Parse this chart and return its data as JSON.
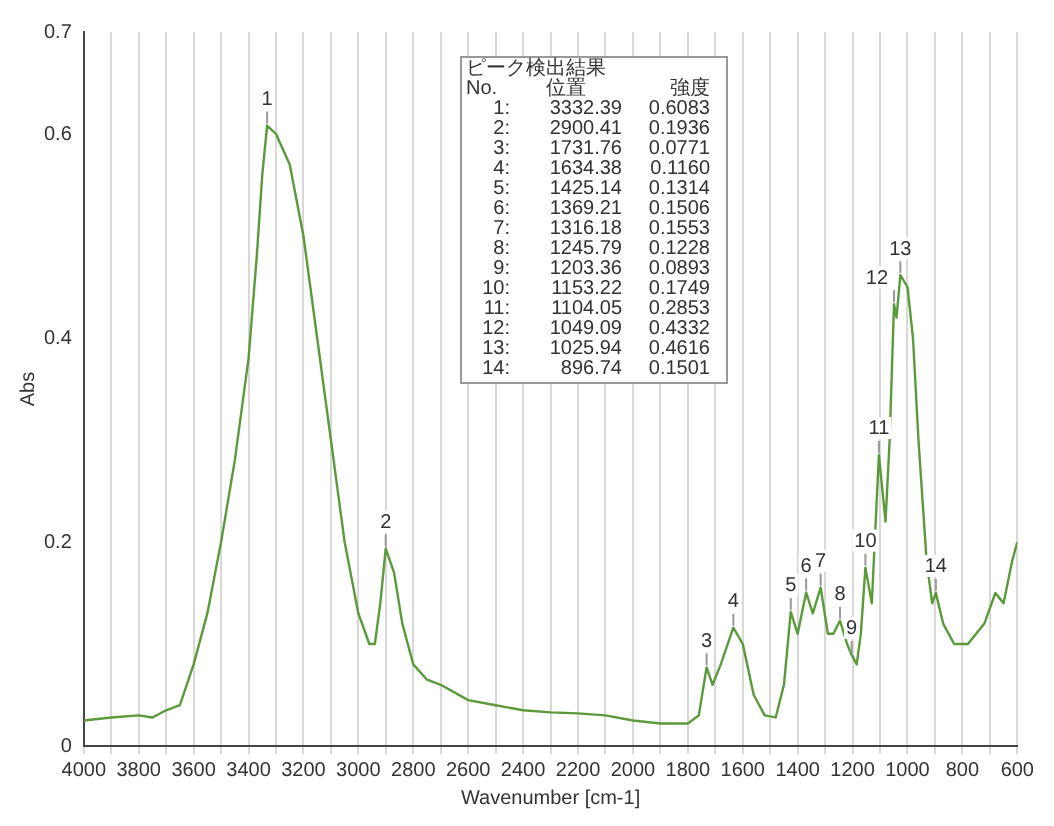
{
  "chart_data": {
    "type": "line",
    "xlabel": "Wavenumber [cm-1]",
    "ylabel": "Abs",
    "xlim": [
      4000,
      600
    ],
    "ylim": [
      0,
      0.7
    ],
    "xticks": [
      4000,
      {
        "value": 3900,
        "label": null
      },
      3800,
      {
        "value": 3700,
        "label": null
      },
      3600,
      {
        "value": 3500,
        "label": null
      },
      3400,
      {
        "value": 3300,
        "label": null
      },
      3200,
      {
        "value": 3100,
        "label": null
      },
      3000,
      {
        "value": 2900,
        "label": null
      },
      2800,
      {
        "value": 2700,
        "label": null
      },
      2600,
      {
        "value": 2500,
        "label": null
      },
      2400,
      {
        "value": 2300,
        "label": null
      },
      2200,
      {
        "value": 2100,
        "label": null
      },
      2000,
      {
        "value": 1900,
        "label": null
      },
      1800,
      {
        "value": 1700,
        "label": null
      },
      1600,
      {
        "value": 1500,
        "label": null
      },
      1400,
      {
        "value": 1300,
        "label": null
      },
      1200,
      {
        "value": 1100,
        "label": null
      },
      1000,
      {
        "value": 900,
        "label": null
      },
      800,
      {
        "value": 700,
        "label": null
      },
      600
    ],
    "yticks": [
      0,
      0.2,
      0.4,
      0.6,
      0.7
    ],
    "grid": "x",
    "legend": false,
    "marker": "none",
    "line_style": "solid",
    "series": [
      {
        "color": "#5a9a3a",
        "x": [
          4000,
          3900,
          3800,
          3750,
          3700,
          3650,
          3600,
          3550,
          3500,
          3450,
          3400,
          3370,
          3350,
          3332.39,
          3300,
          3250,
          3200,
          3150,
          3100,
          3050,
          3000,
          2960,
          2940,
          2920,
          2900.41,
          2870,
          2840,
          2800,
          2750,
          2700,
          2600,
          2500,
          2400,
          2300,
          2200,
          2100,
          2000,
          1900,
          1800,
          1760,
          1731.76,
          1710,
          1680,
          1634.38,
          1600,
          1560,
          1520,
          1480,
          1450,
          1425.14,
          1400,
          1369.21,
          1345,
          1316.18,
          1290,
          1270,
          1245.79,
          1220,
          1203.36,
          1185,
          1170,
          1153.22,
          1130,
          1104.05,
          1080,
          1065,
          1049.09,
          1040,
          1025.94,
          1000,
          980,
          960,
          930,
          910,
          896.74,
          870,
          830,
          780,
          720,
          680,
          650,
          620,
          600
        ],
        "values": [
          0.025,
          0.028,
          0.03,
          0.028,
          0.035,
          0.04,
          0.08,
          0.13,
          0.2,
          0.28,
          0.38,
          0.48,
          0.56,
          0.6083,
          0.6,
          0.57,
          0.5,
          0.4,
          0.3,
          0.2,
          0.13,
          0.1,
          0.1,
          0.14,
          0.1936,
          0.17,
          0.12,
          0.08,
          0.065,
          0.06,
          0.045,
          0.04,
          0.035,
          0.033,
          0.032,
          0.03,
          0.025,
          0.022,
          0.022,
          0.03,
          0.0771,
          0.06,
          0.08,
          0.116,
          0.1,
          0.05,
          0.03,
          0.028,
          0.06,
          0.1314,
          0.11,
          0.1506,
          0.13,
          0.1553,
          0.11,
          0.11,
          0.1228,
          0.1,
          0.0893,
          0.08,
          0.11,
          0.1749,
          0.14,
          0.2853,
          0.22,
          0.3,
          0.4332,
          0.42,
          0.4616,
          0.45,
          0.4,
          0.3,
          0.18,
          0.14,
          0.1501,
          0.12,
          0.1,
          0.1,
          0.12,
          0.15,
          0.14,
          0.18,
          0.2
        ]
      }
    ],
    "annotations": [
      "ピーク検出結果",
      "No. 位置 強度",
      "1: 3332.39 0.6083",
      "2: 2900.41 0.1936",
      "3: 1731.76 0.0771",
      "4: 1634.38 0.1160",
      "5: 1425.14 0.1314",
      "6: 1369.21 0.1506",
      "7: 1316.18 0.1553",
      "8: 1245.79 0.1228",
      "9: 1203.36 0.0893",
      "10: 1153.22 0.1749",
      "11: 1104.05 0.2853",
      "12: 1049.09 0.4332",
      "13: 1025.94 0.4616",
      "14: 896.74 0.1501",
      {
        "text": "1",
        "x": 3332.39,
        "y": 0.6083
      },
      {
        "text": "2",
        "x": 2900.41,
        "y": 0.1936
      },
      {
        "text": "3",
        "x": 1731.76,
        "y": 0.0771
      },
      {
        "text": "4",
        "x": 1634.38,
        "y": 0.116
      },
      {
        "text": "5",
        "x": 1425.14,
        "y": 0.1314
      },
      {
        "text": "6",
        "x": 1369.21,
        "y": 0.1506
      },
      {
        "text": "7",
        "x": 1316.18,
        "y": 0.1553
      },
      {
        "text": "8",
        "x": 1245.79,
        "y": 0.1228
      },
      {
        "text": "9",
        "x": 1203.36,
        "y": 0.0893
      },
      {
        "text": "10",
        "x": 1153.22,
        "y": 0.1749
      },
      {
        "text": "11",
        "x": 1104.05,
        "y": 0.2853
      },
      {
        "text": "12",
        "x": 1049.09,
        "y": 0.4332
      },
      {
        "text": "13",
        "x": 1025.94,
        "y": 0.4616
      },
      {
        "text": "14",
        "x": 896.74,
        "y": 0.1501
      }
    ]
  }
}
